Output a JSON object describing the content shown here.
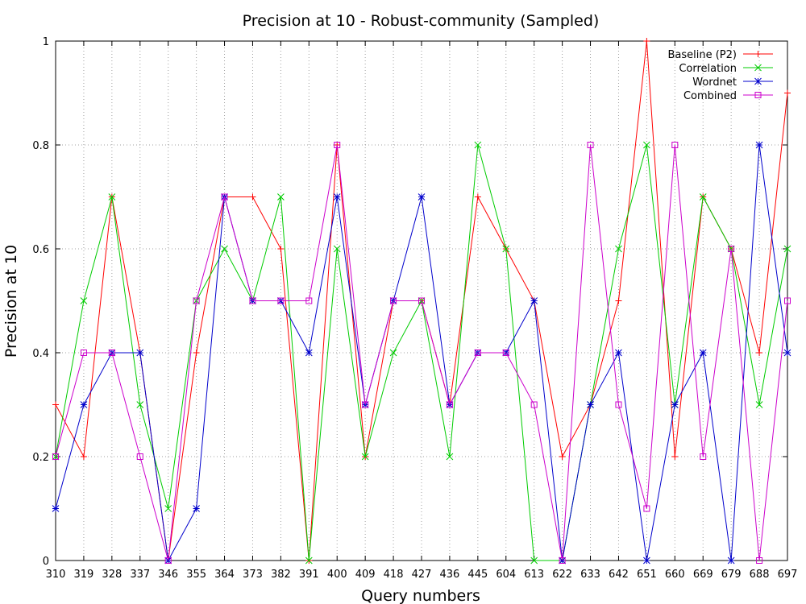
{
  "chart_data": {
    "type": "line",
    "title": "Precision at 10 - Robust-community (Sampled)",
    "xlabel": "Query numbers",
    "ylabel": "Precision at 10",
    "categories": [
      "310",
      "319",
      "328",
      "337",
      "346",
      "355",
      "364",
      "373",
      "382",
      "391",
      "400",
      "409",
      "418",
      "427",
      "436",
      "445",
      "604",
      "613",
      "622",
      "633",
      "642",
      "651",
      "660",
      "669",
      "679",
      "688",
      "697"
    ],
    "ylim": [
      0,
      1
    ],
    "yticks": [
      0,
      0.2,
      0.4,
      0.6,
      0.8,
      1
    ],
    "ytick_labels": [
      "0",
      "0.2",
      "0.4",
      "0.6",
      "0.8",
      "1"
    ],
    "grid": true,
    "legend_position": "top-right",
    "series": [
      {
        "name": "Baseline (P2)",
        "color": "#ff0000",
        "marker": "plus",
        "values": [
          0.3,
          0.2,
          0.7,
          0.4,
          0,
          0.4,
          0.7,
          0.7,
          0.6,
          0,
          0.8,
          0.2,
          0.5,
          0.5,
          0.3,
          0.7,
          0.6,
          0.5,
          0.2,
          0.3,
          0.5,
          1.0,
          0.2,
          0.7,
          0.6,
          0.4,
          0.9
        ]
      },
      {
        "name": "Correlation",
        "color": "#00cc00",
        "marker": "cross",
        "values": [
          0.2,
          0.5,
          0.7,
          0.3,
          0.1,
          0.5,
          0.6,
          0.5,
          0.7,
          0,
          0.6,
          0.2,
          0.4,
          0.5,
          0.2,
          0.8,
          0.6,
          0,
          0,
          0.3,
          0.6,
          0.8,
          0.3,
          0.7,
          0.6,
          0.3,
          0.6
        ]
      },
      {
        "name": "Wordnet",
        "color": "#0000cc",
        "marker": "star",
        "values": [
          0.1,
          0.3,
          0.4,
          0.4,
          0,
          0.1,
          0.7,
          0.5,
          0.5,
          0.4,
          0.7,
          0.3,
          0.5,
          0.7,
          0.3,
          0.4,
          0.4,
          0.5,
          0,
          0.3,
          0.4,
          0,
          0.3,
          0.4,
          0,
          0.8,
          0.4
        ]
      },
      {
        "name": "Combined",
        "color": "#cc00cc",
        "marker": "square",
        "values": [
          0.2,
          0.4,
          0.4,
          0.2,
          0,
          0.5,
          0.7,
          0.5,
          0.5,
          0.5,
          0.8,
          0.3,
          0.5,
          0.5,
          0.3,
          0.4,
          0.4,
          0.3,
          0,
          0.8,
          0.3,
          0.1,
          0.8,
          0.2,
          0.6,
          0,
          0.5
        ]
      }
    ]
  }
}
